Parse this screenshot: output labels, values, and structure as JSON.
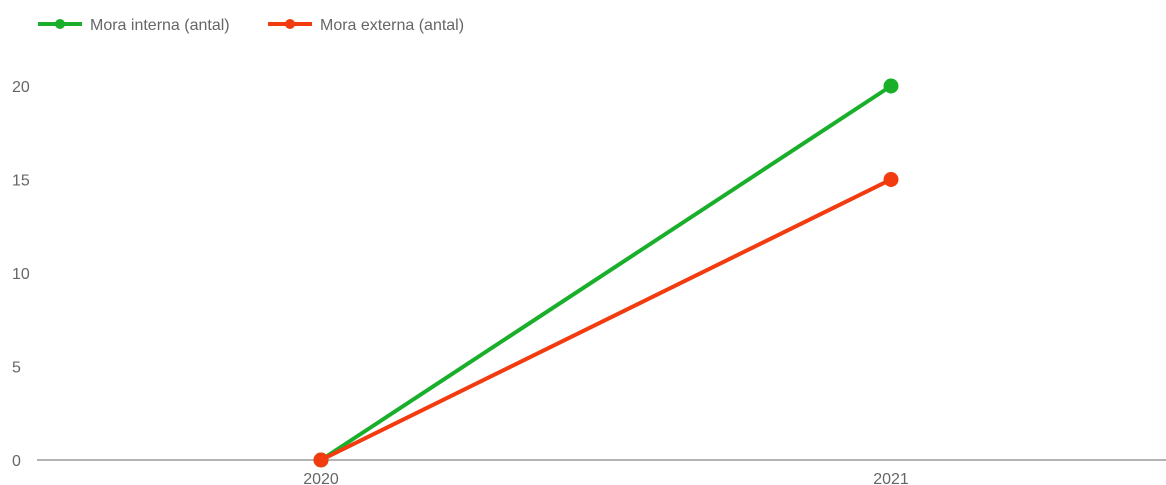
{
  "chart_data": {
    "type": "line",
    "categories": [
      "2020",
      "2021"
    ],
    "series": [
      {
        "name": "Mora interna (antal)",
        "values": [
          0,
          20
        ],
        "color": "#1aaf2a"
      },
      {
        "name": "Mora externa (antal)",
        "values": [
          0,
          15
        ],
        "color": "#f23b0e"
      }
    ],
    "ylim": [
      0,
      20
    ],
    "y_ticks": [
      0,
      5,
      10,
      15,
      20
    ],
    "grid": false,
    "legend": "top-left",
    "title": "",
    "xlabel": "",
    "ylabel": ""
  }
}
